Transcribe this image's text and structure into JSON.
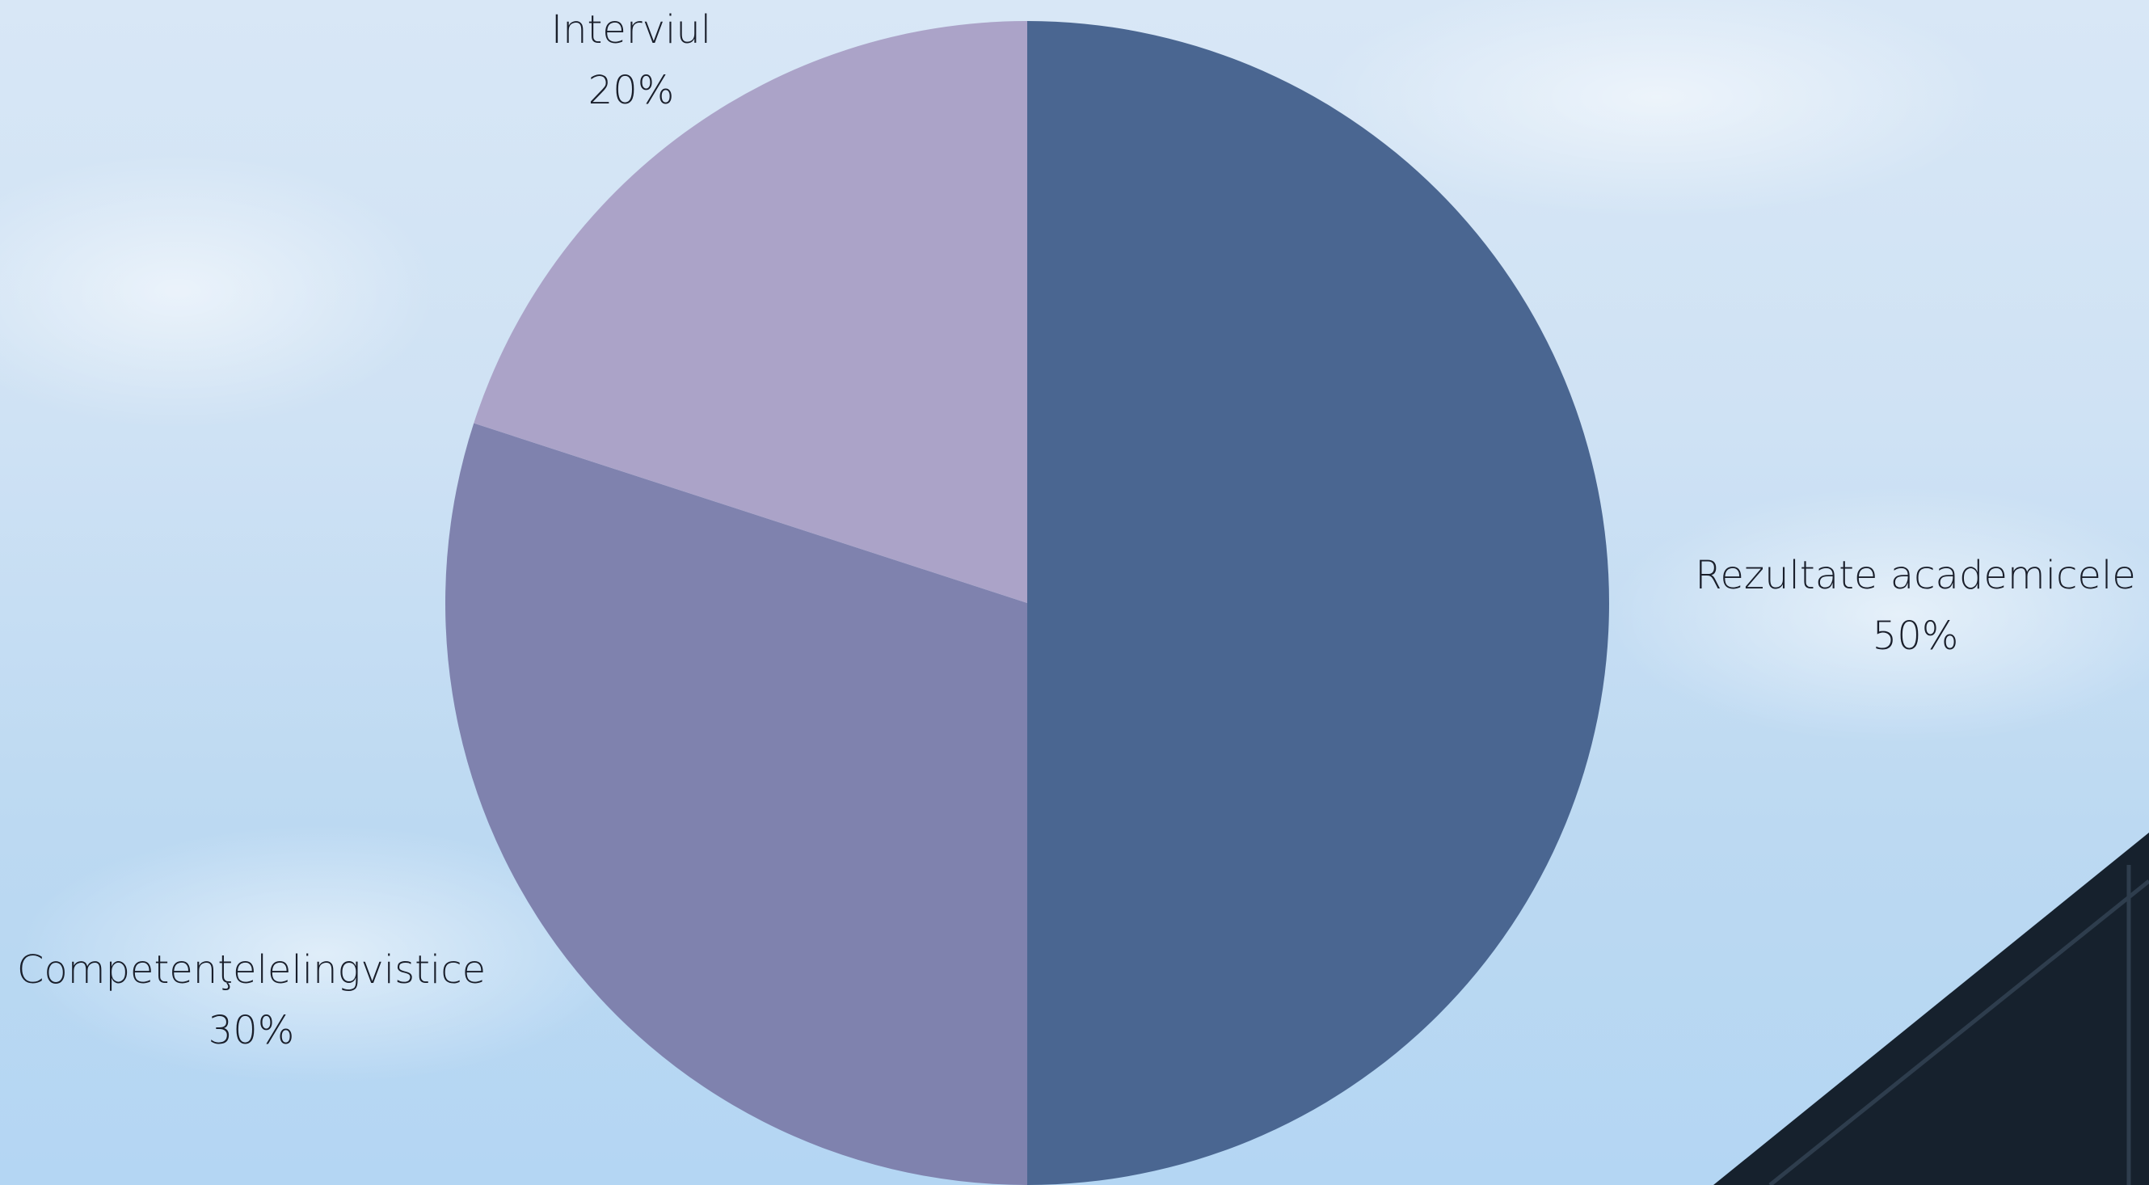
{
  "chart_data": {
    "type": "pie",
    "title": "",
    "start_angle_deg": 0,
    "direction": "clockwise",
    "slices": [
      {
        "label": "Rezultate academicele",
        "value": 50,
        "value_label": "50%",
        "color": "#4a6691"
      },
      {
        "label": "Competenţelelingvistice",
        "value": 30,
        "value_label": "30%",
        "color": "#7f82ae"
      },
      {
        "label": "Interviul",
        "value": 20,
        "value_label": "20%",
        "color": "#aba3c8"
      }
    ]
  },
  "background": {
    "sky_color_top": "#d8e7f6",
    "sky_color_bottom": "#b4d6f3",
    "building_color": "#16212d"
  }
}
